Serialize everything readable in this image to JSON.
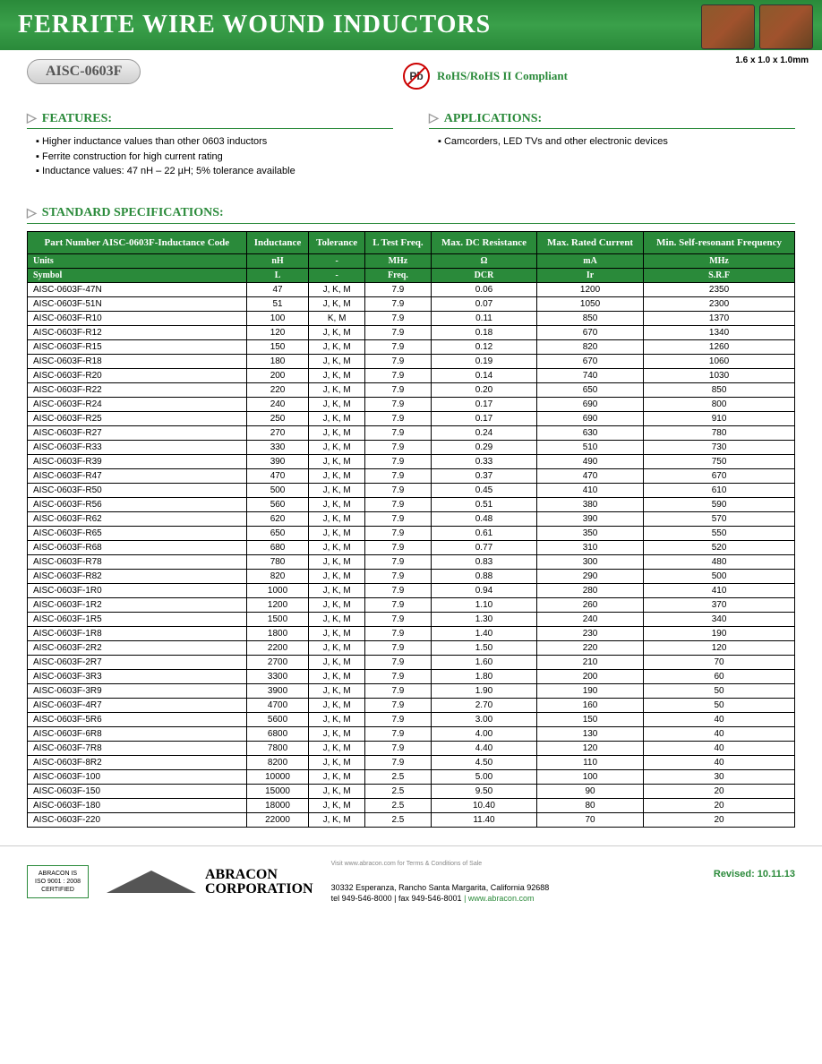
{
  "header": {
    "title": "FERRITE WIRE WOUND INDUCTORS",
    "part_number": "AISC-0603F",
    "dimensions": "1.6 x 1.0 x 1.0mm",
    "pb_label": "Pb",
    "compliance": "RoHS/RoHS II Compliant"
  },
  "features": {
    "title": "FEATURES:",
    "items": [
      "Higher inductance values than other 0603 inductors",
      "Ferrite construction for high current rating",
      "Inductance values: 47 nH – 22 µH; 5% tolerance available"
    ]
  },
  "applications": {
    "title": "APPLICATIONS:",
    "items": [
      "Camcorders, LED TVs and other electronic devices"
    ]
  },
  "spec_title": "STANDARD SPECIFICATIONS:",
  "table": {
    "headers": [
      "Part Number AISC-0603F-Inductance Code",
      "Inductance",
      "Tolerance",
      "L Test Freq.",
      "Max. DC Resistance",
      "Max. Rated Current",
      "Min. Self-resonant Frequency"
    ],
    "units_label": "Units",
    "units": [
      "nH",
      "-",
      "MHz",
      "Ω",
      "mA",
      "MHz"
    ],
    "symbol_label": "Symbol",
    "symbols": [
      "L",
      "-",
      "Freq.",
      "DCR",
      "Ir",
      "S.R.F"
    ],
    "rows": [
      [
        "AISC-0603F-47N",
        "47",
        "J, K, M",
        "7.9",
        "0.06",
        "1200",
        "2350"
      ],
      [
        "AISC-0603F-51N",
        "51",
        "J, K, M",
        "7.9",
        "0.07",
        "1050",
        "2300"
      ],
      [
        "AISC-0603F-R10",
        "100",
        "K, M",
        "7.9",
        "0.11",
        "850",
        "1370"
      ],
      [
        "AISC-0603F-R12",
        "120",
        "J, K, M",
        "7.9",
        "0.18",
        "670",
        "1340"
      ],
      [
        "AISC-0603F-R15",
        "150",
        "J, K, M",
        "7.9",
        "0.12",
        "820",
        "1260"
      ],
      [
        "AISC-0603F-R18",
        "180",
        "J, K, M",
        "7.9",
        "0.19",
        "670",
        "1060"
      ],
      [
        "AISC-0603F-R20",
        "200",
        "J, K, M",
        "7.9",
        "0.14",
        "740",
        "1030"
      ],
      [
        "AISC-0603F-R22",
        "220",
        "J, K, M",
        "7.9",
        "0.20",
        "650",
        "850"
      ],
      [
        "AISC-0603F-R24",
        "240",
        "J, K, M",
        "7.9",
        "0.17",
        "690",
        "800"
      ],
      [
        "AISC-0603F-R25",
        "250",
        "J, K, M",
        "7.9",
        "0.17",
        "690",
        "910"
      ],
      [
        "AISC-0603F-R27",
        "270",
        "J, K, M",
        "7.9",
        "0.24",
        "630",
        "780"
      ],
      [
        "AISC-0603F-R33",
        "330",
        "J, K, M",
        "7.9",
        "0.29",
        "510",
        "730"
      ],
      [
        "AISC-0603F-R39",
        "390",
        "J, K, M",
        "7.9",
        "0.33",
        "490",
        "750"
      ],
      [
        "AISC-0603F-R47",
        "470",
        "J, K, M",
        "7.9",
        "0.37",
        "470",
        "670"
      ],
      [
        "AISC-0603F-R50",
        "500",
        "J, K, M",
        "7.9",
        "0.45",
        "410",
        "610"
      ],
      [
        "AISC-0603F-R56",
        "560",
        "J, K, M",
        "7.9",
        "0.51",
        "380",
        "590"
      ],
      [
        "AISC-0603F-R62",
        "620",
        "J, K, M",
        "7.9",
        "0.48",
        "390",
        "570"
      ],
      [
        "AISC-0603F-R65",
        "650",
        "J, K, M",
        "7.9",
        "0.61",
        "350",
        "550"
      ],
      [
        "AISC-0603F-R68",
        "680",
        "J, K, M",
        "7.9",
        "0.77",
        "310",
        "520"
      ],
      [
        "AISC-0603F-R78",
        "780",
        "J, K, M",
        "7.9",
        "0.83",
        "300",
        "480"
      ],
      [
        "AISC-0603F-R82",
        "820",
        "J, K, M",
        "7.9",
        "0.88",
        "290",
        "500"
      ],
      [
        "AISC-0603F-1R0",
        "1000",
        "J, K, M",
        "7.9",
        "0.94",
        "280",
        "410"
      ],
      [
        "AISC-0603F-1R2",
        "1200",
        "J, K, M",
        "7.9",
        "1.10",
        "260",
        "370"
      ],
      [
        "AISC-0603F-1R5",
        "1500",
        "J, K, M",
        "7.9",
        "1.30",
        "240",
        "340"
      ],
      [
        "AISC-0603F-1R8",
        "1800",
        "J, K, M",
        "7.9",
        "1.40",
        "230",
        "190"
      ],
      [
        "AISC-0603F-2R2",
        "2200",
        "J, K, M",
        "7.9",
        "1.50",
        "220",
        "120"
      ],
      [
        "AISC-0603F-2R7",
        "2700",
        "J, K, M",
        "7.9",
        "1.60",
        "210",
        "70"
      ],
      [
        "AISC-0603F-3R3",
        "3300",
        "J, K, M",
        "7.9",
        "1.80",
        "200",
        "60"
      ],
      [
        "AISC-0603F-3R9",
        "3900",
        "J, K, M",
        "7.9",
        "1.90",
        "190",
        "50"
      ],
      [
        "AISC-0603F-4R7",
        "4700",
        "J, K, M",
        "7.9",
        "2.70",
        "160",
        "50"
      ],
      [
        "AISC-0603F-5R6",
        "5600",
        "J, K, M",
        "7.9",
        "3.00",
        "150",
        "40"
      ],
      [
        "AISC-0603F-6R8",
        "6800",
        "J, K, M",
        "7.9",
        "4.00",
        "130",
        "40"
      ],
      [
        "AISC-0603F-7R8",
        "7800",
        "J, K, M",
        "7.9",
        "4.40",
        "120",
        "40"
      ],
      [
        "AISC-0603F-8R2",
        "8200",
        "J, K, M",
        "7.9",
        "4.50",
        "110",
        "40"
      ],
      [
        "AISC-0603F-100",
        "10000",
        "J, K, M",
        "2.5",
        "5.00",
        "100",
        "30"
      ],
      [
        "AISC-0603F-150",
        "15000",
        "J, K, M",
        "2.5",
        "9.50",
        "90",
        "20"
      ],
      [
        "AISC-0603F-180",
        "18000",
        "J, K, M",
        "2.5",
        "10.40",
        "80",
        "20"
      ],
      [
        "AISC-0603F-220",
        "22000",
        "J, K, M",
        "2.5",
        "11.40",
        "70",
        "20"
      ]
    ]
  },
  "footer": {
    "cert_line1": "ABRACON IS",
    "cert_line2": "ISO 9001 : 2008",
    "cert_line3": "CERTIFIED",
    "company_line1": "ABRACON",
    "company_line2": "CORPORATION",
    "terms": "Visit www.abracon.com for Terms & Conditions of Sale",
    "address": "30332 Esperanza, Rancho Santa Margarita, California 92688",
    "phone": "tel 949-546-8000",
    "fax": "| fax 949-546-8001",
    "web": "| www.abracon.com",
    "revised": "Revised: 10.11.13"
  }
}
